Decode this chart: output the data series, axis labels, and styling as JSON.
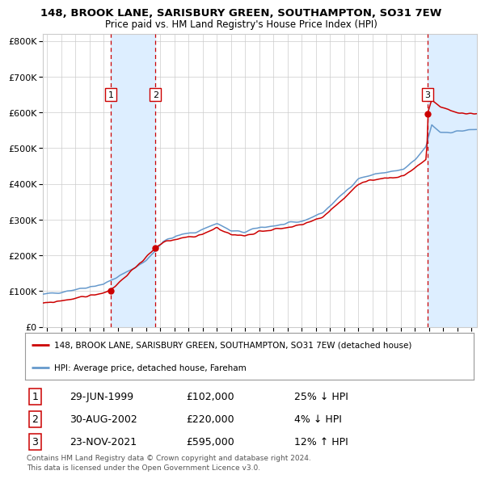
{
  "title1": "148, BROOK LANE, SARISBURY GREEN, SOUTHAMPTON, SO31 7EW",
  "title2": "Price paid vs. HM Land Registry's House Price Index (HPI)",
  "legend_red": "148, BROOK LANE, SARISBURY GREEN, SOUTHAMPTON, SO31 7EW (detached house)",
  "legend_blue": "HPI: Average price, detached house, Fareham",
  "transactions": [
    {
      "num": 1,
      "date_str": "29-JUN-1999",
      "price": 102000,
      "hpi_rel": "25% ↓ HPI",
      "date_x": 1999.49
    },
    {
      "num": 2,
      "date_str": "30-AUG-2002",
      "price": 220000,
      "hpi_rel": "4% ↓ HPI",
      "date_x": 2002.66
    },
    {
      "num": 3,
      "date_str": "23-NOV-2021",
      "price": 595000,
      "hpi_rel": "12% ↑ HPI",
      "date_x": 2021.9
    }
  ],
  "footer": "Contains HM Land Registry data © Crown copyright and database right 2024.\nThis data is licensed under the Open Government Licence v3.0.",
  "ylim": [
    0,
    820000
  ],
  "xlim_start": 1994.7,
  "xlim_end": 2025.4,
  "red_color": "#cc0000",
  "blue_color": "#6699cc",
  "shade_color": "#ddeeff",
  "grid_color": "#cccccc",
  "bg_color": "#ffffff",
  "hpi_anchors_x": [
    1994.7,
    1995.5,
    1997.0,
    1999.0,
    2000.5,
    2002.0,
    2003.2,
    2004.5,
    2005.5,
    2007.0,
    2008.0,
    2009.0,
    2010.0,
    2011.5,
    2013.0,
    2014.5,
    2016.0,
    2017.0,
    2018.5,
    2019.5,
    2020.2,
    2021.0,
    2021.8,
    2022.2,
    2022.8,
    2023.5,
    2024.2,
    2025.3
  ],
  "hpi_anchors_y": [
    90000,
    95000,
    105000,
    120000,
    150000,
    185000,
    240000,
    258000,
    265000,
    290000,
    268000,
    265000,
    278000,
    285000,
    295000,
    320000,
    375000,
    415000,
    430000,
    435000,
    440000,
    465000,
    505000,
    565000,
    545000,
    545000,
    548000,
    552000
  ],
  "red_anchors_x": [
    1994.7,
    1995.5,
    1997.0,
    1999.0,
    1999.49,
    2002.66,
    2003.2,
    2004.5,
    2005.5,
    2007.0,
    2008.0,
    2009.0,
    2010.0,
    2011.5,
    2013.0,
    2014.5,
    2016.0,
    2017.0,
    2018.5,
    2019.5,
    2020.2,
    2021.0,
    2021.85,
    2021.9,
    2022.2,
    2022.8,
    2023.5,
    2024.2,
    2025.3
  ],
  "red_anchors_y": [
    65000,
    70000,
    80000,
    95000,
    102000,
    220000,
    235000,
    248000,
    252000,
    278000,
    258000,
    255000,
    268000,
    275000,
    285000,
    308000,
    360000,
    398000,
    415000,
    418000,
    423000,
    445000,
    470000,
    595000,
    635000,
    615000,
    605000,
    598000,
    596000
  ]
}
